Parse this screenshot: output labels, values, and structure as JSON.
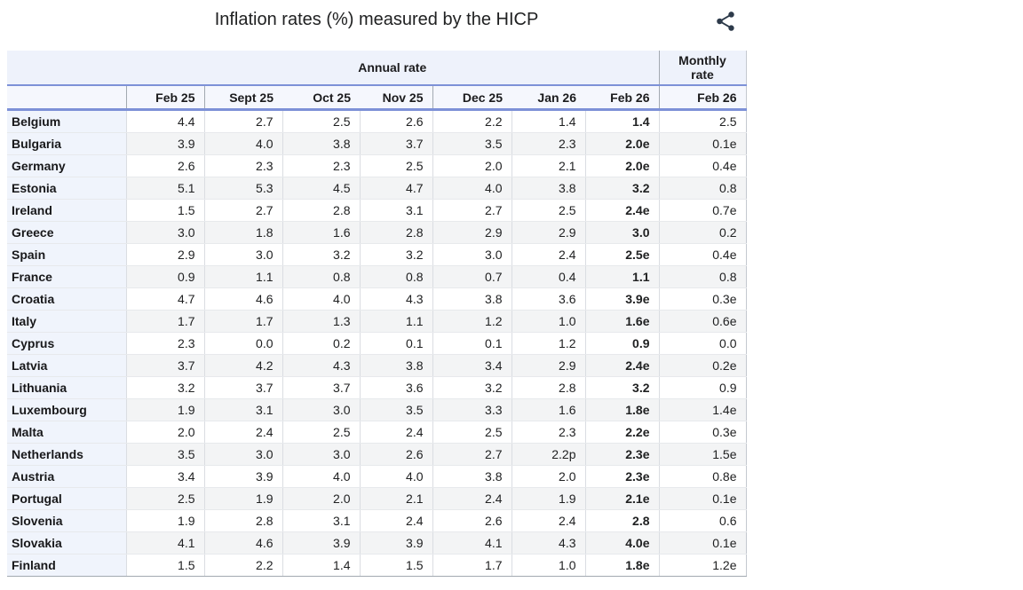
{
  "title": "Inflation rates (%) measured by the HICP",
  "toolbar": {
    "share_icon": "share-icon"
  },
  "colors": {
    "header_line_blue": "#7d91d7",
    "group_header_bg": "#eef2fb",
    "column_header_bg": "#f5f7fd",
    "row_header_bg": "#f0f4fc",
    "stripe_gray": "#f3f4f5",
    "share_icon": "#2d3a4a"
  },
  "chart_data": {
    "type": "table",
    "title": "Inflation rates (%) measured by the HICP",
    "column_groups": [
      {
        "label": "Annual rate",
        "span": 7
      },
      {
        "label": "Monthly rate",
        "span": 1
      }
    ],
    "columns": [
      "Feb 25",
      "Sept 25",
      "Oct 25",
      "Nov 25",
      "Dec 25",
      "Jan 26",
      "Feb 26",
      "Feb 26"
    ],
    "rows": [
      {
        "country": "Belgium",
        "values": [
          "4.4",
          "2.7",
          "2.5",
          "2.6",
          "2.2",
          "1.4",
          "1.4",
          "2.5"
        ]
      },
      {
        "country": "Bulgaria",
        "values": [
          "3.9",
          "4.0",
          "3.8",
          "3.7",
          "3.5",
          "2.3",
          "2.0e",
          "0.1e"
        ]
      },
      {
        "country": "Germany",
        "values": [
          "2.6",
          "2.3",
          "2.3",
          "2.5",
          "2.0",
          "2.1",
          "2.0e",
          "0.4e"
        ]
      },
      {
        "country": "Estonia",
        "values": [
          "5.1",
          "5.3",
          "4.5",
          "4.7",
          "4.0",
          "3.8",
          "3.2",
          "0.8"
        ]
      },
      {
        "country": "Ireland",
        "values": [
          "1.5",
          "2.7",
          "2.8",
          "3.1",
          "2.7",
          "2.5",
          "2.4e",
          "0.7e"
        ]
      },
      {
        "country": "Greece",
        "values": [
          "3.0",
          "1.8",
          "1.6",
          "2.8",
          "2.9",
          "2.9",
          "3.0",
          "0.2"
        ]
      },
      {
        "country": "Spain",
        "values": [
          "2.9",
          "3.0",
          "3.2",
          "3.2",
          "3.0",
          "2.4",
          "2.5e",
          "0.4e"
        ]
      },
      {
        "country": "France",
        "values": [
          "0.9",
          "1.1",
          "0.8",
          "0.8",
          "0.7",
          "0.4",
          "1.1",
          "0.8"
        ]
      },
      {
        "country": "Croatia",
        "values": [
          "4.7",
          "4.6",
          "4.0",
          "4.3",
          "3.8",
          "3.6",
          "3.9e",
          "0.3e"
        ]
      },
      {
        "country": "Italy",
        "values": [
          "1.7",
          "1.7",
          "1.3",
          "1.1",
          "1.2",
          "1.0",
          "1.6e",
          "0.6e"
        ]
      },
      {
        "country": "Cyprus",
        "values": [
          "2.3",
          "0.0",
          "0.2",
          "0.1",
          "0.1",
          "1.2",
          "0.9",
          "0.0"
        ]
      },
      {
        "country": "Latvia",
        "values": [
          "3.7",
          "4.2",
          "4.3",
          "3.8",
          "3.4",
          "2.9",
          "2.4e",
          "0.2e"
        ]
      },
      {
        "country": "Lithuania",
        "values": [
          "3.2",
          "3.7",
          "3.7",
          "3.6",
          "3.2",
          "2.8",
          "3.2",
          "0.9"
        ]
      },
      {
        "country": "Luxembourg",
        "values": [
          "1.9",
          "3.1",
          "3.0",
          "3.5",
          "3.3",
          "1.6",
          "1.8e",
          "1.4e"
        ]
      },
      {
        "country": "Malta",
        "values": [
          "2.0",
          "2.4",
          "2.5",
          "2.4",
          "2.5",
          "2.3",
          "2.2e",
          "0.3e"
        ]
      },
      {
        "country": "Netherlands",
        "values": [
          "3.5",
          "3.0",
          "3.0",
          "2.6",
          "2.7",
          "2.2p",
          "2.3e",
          "1.5e"
        ]
      },
      {
        "country": "Austria",
        "values": [
          "3.4",
          "3.9",
          "4.0",
          "4.0",
          "3.8",
          "2.0",
          "2.3e",
          "0.8e"
        ]
      },
      {
        "country": "Portugal",
        "values": [
          "2.5",
          "1.9",
          "2.0",
          "2.1",
          "2.4",
          "1.9",
          "2.1e",
          "0.1e"
        ]
      },
      {
        "country": "Slovenia",
        "values": [
          "1.9",
          "2.8",
          "3.1",
          "2.4",
          "2.6",
          "2.4",
          "2.8",
          "0.6"
        ]
      },
      {
        "country": "Slovakia",
        "values": [
          "4.1",
          "4.6",
          "3.9",
          "3.9",
          "4.1",
          "4.3",
          "4.0e",
          "0.1e"
        ]
      },
      {
        "country": "Finland",
        "values": [
          "1.5",
          "2.2",
          "1.4",
          "1.5",
          "1.7",
          "1.0",
          "1.8e",
          "1.2e"
        ]
      }
    ]
  }
}
